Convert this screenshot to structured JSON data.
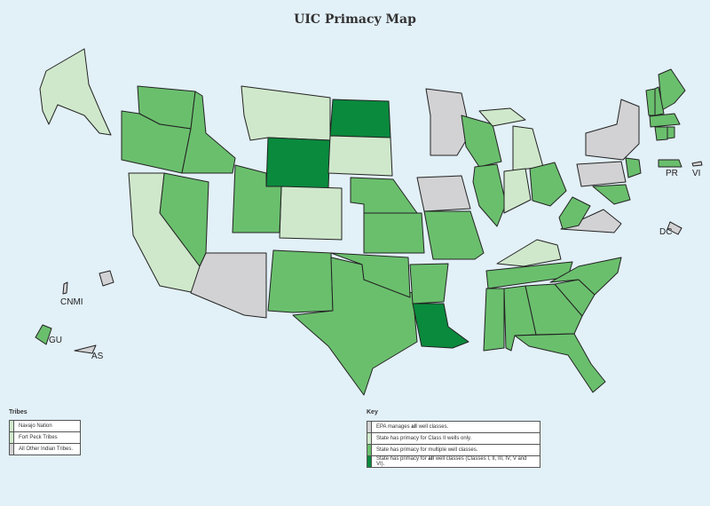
{
  "title": "UIC Primacy Map",
  "colors": {
    "epa": "#d2d2d4",
    "class2": "#cfe8cb",
    "multiple": "#6abf6d",
    "all": "#0a8a3d",
    "ocean": "#e2f0f8"
  },
  "states": {
    "WA": "multiple",
    "OR": "multiple",
    "ID": "multiple",
    "MT": "class2",
    "WY": "all",
    "ND": "all",
    "SD": "class2",
    "NE": "multiple",
    "KS": "multiple",
    "CO": "class2",
    "UT": "multiple",
    "NV": "multiple",
    "CA": "class2",
    "AZ": "epa",
    "NM": "multiple",
    "TX": "multiple",
    "OK": "multiple",
    "MN": "epa",
    "IA": "epa",
    "MO": "multiple",
    "AR": "multiple",
    "LA": "all",
    "WI": "multiple",
    "IL": "multiple",
    "MI": "class2",
    "MI-UP": "class2",
    "IN": "class2",
    "OH": "multiple",
    "KY": "class2",
    "TN": "multiple",
    "MS": "multiple",
    "AL": "multiple",
    "GA": "multiple",
    "FL": "multiple",
    "SC": "multiple",
    "NC": "multiple",
    "VA": "epa",
    "WV": "multiple",
    "PA": "epa",
    "NY": "epa",
    "NJ": "multiple",
    "MD": "multiple",
    "ME": "multiple",
    "NH": "multiple",
    "VT": "multiple",
    "MA": "multiple",
    "CT": "multiple",
    "RI": "multiple",
    "AK": "class2",
    "HI": "epa",
    "GU": "multiple",
    "AS": "epa",
    "PR": "multiple",
    "VI": "epa",
    "CNMI": "epa",
    "DC": "epa"
  },
  "territory_labels": {
    "pr": "PR",
    "vi": "VI",
    "dc": "DC",
    "cnmi": "CNMI",
    "gu": "GU",
    "as": "AS"
  },
  "tribes": {
    "title": "Tribes",
    "items": [
      {
        "label": "Navajo Nation",
        "status": "class2"
      },
      {
        "label": "Fort Peck Tribes",
        "status": "class2"
      },
      {
        "label": "All Other Indian Tribes.",
        "status": "epa"
      }
    ]
  },
  "key": {
    "title": "Key",
    "items": [
      {
        "pre": "EPA manages ",
        "bold": "all",
        "post": " well classes.",
        "status": "epa"
      },
      {
        "pre": "State has primacy for Class II wells only.",
        "bold": "",
        "post": "",
        "status": "class2"
      },
      {
        "pre": "State has primacy for multiple well classes.",
        "bold": "",
        "post": "",
        "status": "multiple"
      },
      {
        "pre": "State has primacy for ",
        "bold": "all",
        "post": " well classes (Classes I, II, III, IV, V and VI).",
        "status": "all"
      }
    ]
  }
}
